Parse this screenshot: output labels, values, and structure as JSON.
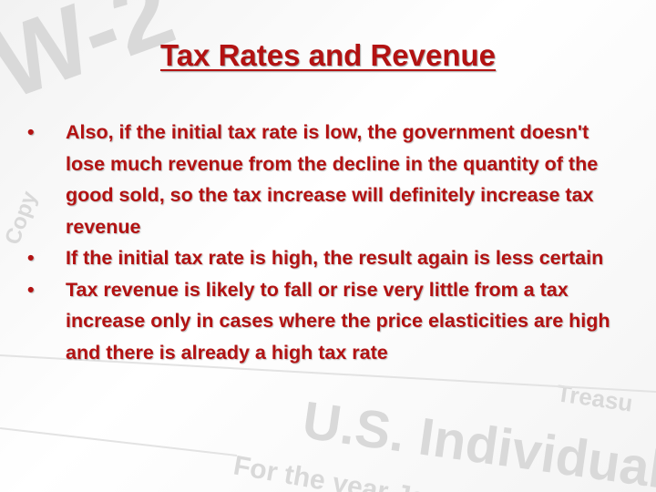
{
  "slide": {
    "title": "Tax Rates and Revenue",
    "bullets": [
      "Also, if the initial tax rate is low, the government doesn't lose much revenue from the decline in the quantity of the good sold, so the tax increase will definitely increase tax revenue",
      "If the initial tax rate is high, the result again is less certain",
      "Tax revenue is likely to fall or rise very little from a tax increase only in cases where the price elasticities are high and there is already a high tax rate"
    ],
    "background_texts": [
      "W-2",
      "U.S. Individual",
      "For the year Jan",
      "Treasu",
      "Copy"
    ]
  }
}
